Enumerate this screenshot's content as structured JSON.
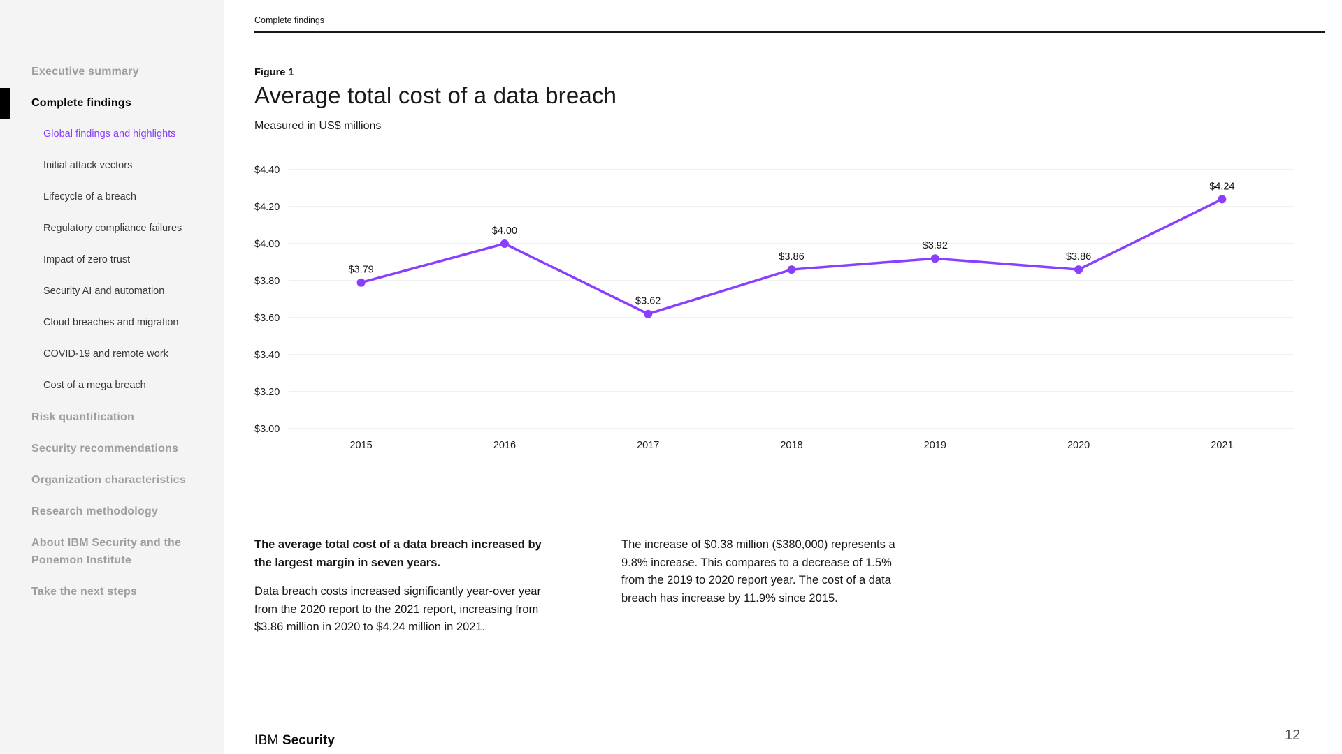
{
  "colors": {
    "accent": "#8a3ffc",
    "sidebar_bg": "#f4f4f4",
    "text": "#161616",
    "muted_nav": "#9e9e9e",
    "grid": "#e0e0e0",
    "active_bar": "#000000",
    "page_number": "#525252"
  },
  "sidebar": {
    "items": [
      {
        "label": "Executive summary",
        "level": 1,
        "state": ""
      },
      {
        "label": "Complete findings",
        "level": 1,
        "state": "current-section"
      },
      {
        "label": "Global findings and highlights",
        "level": 2,
        "state": "current-link"
      },
      {
        "label": "Initial attack vectors",
        "level": 2,
        "state": ""
      },
      {
        "label": "Lifecycle of a breach",
        "level": 2,
        "state": ""
      },
      {
        "label": "Regulatory compliance failures",
        "level": 2,
        "state": ""
      },
      {
        "label": "Impact of zero trust",
        "level": 2,
        "state": ""
      },
      {
        "label": "Security AI and automation",
        "level": 2,
        "state": ""
      },
      {
        "label": "Cloud breaches and migration",
        "level": 2,
        "state": ""
      },
      {
        "label": "COVID-19 and remote work",
        "level": 2,
        "state": ""
      },
      {
        "label": "Cost of a mega breach",
        "level": 2,
        "state": ""
      },
      {
        "label": "Risk quantification",
        "level": 1,
        "state": ""
      },
      {
        "label": "Security recommendations",
        "level": 1,
        "state": ""
      },
      {
        "label": "Organization characteristics",
        "level": 1,
        "state": ""
      },
      {
        "label": "Research methodology",
        "level": 1,
        "state": ""
      },
      {
        "label": "About IBM Security and the Ponemon Institute",
        "level": 1,
        "state": ""
      },
      {
        "label": "Take the next steps",
        "level": 1,
        "state": ""
      }
    ]
  },
  "header": {
    "eyebrow": "Complete findings"
  },
  "figure": {
    "label": "Figure 1",
    "title": "Average total cost of a data breach",
    "subtitle": "Measured in US$ millions"
  },
  "chart_data": {
    "type": "line",
    "title": "Average total cost of a data breach",
    "subtitle": "Measured in US$ millions",
    "x": [
      "2015",
      "2016",
      "2017",
      "2018",
      "2019",
      "2020",
      "2021"
    ],
    "values": [
      3.79,
      4.0,
      3.62,
      3.86,
      3.92,
      3.86,
      4.24
    ],
    "point_labels": [
      "$3.79",
      "$4.00",
      "$3.62",
      "$3.86",
      "$3.92",
      "$3.86",
      "$4.24"
    ],
    "ylim": [
      3.0,
      4.4
    ],
    "ytick_step": 0.2,
    "ytick_labels": [
      "$3.00",
      "$3.20",
      "$3.40",
      "$3.60",
      "$3.80",
      "$4.00",
      "$4.20",
      "$4.40"
    ],
    "grid": true,
    "legend": "none",
    "line_color": "#8a3ffc"
  },
  "commentary": {
    "left_heading": "The average total cost of a data breach increased by the largest margin in seven years.",
    "left_body": "Data breach costs increased significantly year-over year from the 2020 report to the 2021 report, increasing from $3.86 million in 2020 to $4.24 million in 2021.",
    "right_body": "The increase of $0.38 million ($380,000) represents a 9.8% increase. This compares to a decrease of 1.5% from the 2019 to 2020 report year. The cost of a data breach has increase by 11.9% since 2015."
  },
  "footer": {
    "brand_prefix": "IBM",
    "brand_suffix": "Security",
    "page_number": "12"
  }
}
